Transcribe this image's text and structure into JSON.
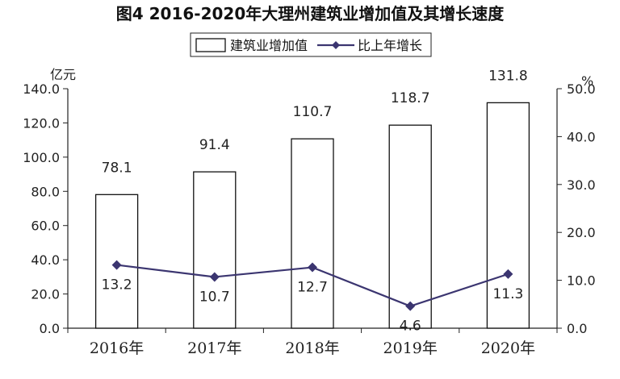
{
  "chart_data": {
    "type": "bar",
    "title": "图4   2016-2020年大理州建筑业增加值及其增长速度",
    "categories": [
      "2016年",
      "2017年",
      "2018年",
      "2019年",
      "2020年"
    ],
    "series": [
      {
        "name": "建筑业增加值",
        "type": "bar",
        "axis": "left",
        "values": [
          78.1,
          91.4,
          110.7,
          118.7,
          131.8
        ]
      },
      {
        "name": "比上年增长",
        "type": "line",
        "axis": "right",
        "values": [
          13.2,
          10.7,
          12.7,
          4.6,
          11.3
        ]
      }
    ],
    "y_left": {
      "unit": "亿元",
      "ylim": [
        0,
        140
      ],
      "ticks": [
        "0.0",
        "20.0",
        "40.0",
        "60.0",
        "80.0",
        "100.0",
        "120.0",
        "140.0"
      ]
    },
    "y_right": {
      "unit": "%",
      "ylim": [
        0,
        50
      ],
      "ticks": [
        "0.0",
        "10.0",
        "20.0",
        "30.0",
        "40.0",
        "50.0"
      ]
    },
    "bar_labels": [
      "78.1",
      "91.4",
      "110.7",
      "118.7",
      "131.8"
    ],
    "line_labels": [
      "13.2",
      "10.7",
      "12.7",
      "4.6",
      "11.3"
    ],
    "legend_position": "top-center",
    "grid": false,
    "colors": {
      "bar_fill": "#ffffff",
      "bar_stroke": "#111111",
      "line": "#3b3570",
      "marker": "#3b3570"
    }
  }
}
